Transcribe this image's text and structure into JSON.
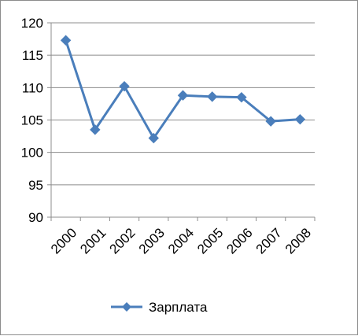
{
  "chart_data": {
    "type": "line",
    "title": "",
    "xlabel": "",
    "ylabel": "",
    "categories": [
      "2000",
      "2001",
      "2002",
      "2003",
      "2004",
      "2005",
      "2006",
      "2007",
      "2008"
    ],
    "ylim": [
      90,
      120
    ],
    "y_ticks": [
      90,
      95,
      100,
      105,
      110,
      115,
      120
    ],
    "series": [
      {
        "name": "Зарплата",
        "values": [
          117.3,
          103.5,
          110.2,
          102.2,
          108.8,
          108.6,
          108.5,
          104.8,
          105.1
        ],
        "color": "#4a7ebb",
        "marker": "diamond"
      }
    ],
    "grid": true,
    "legend_position": "bottom"
  }
}
